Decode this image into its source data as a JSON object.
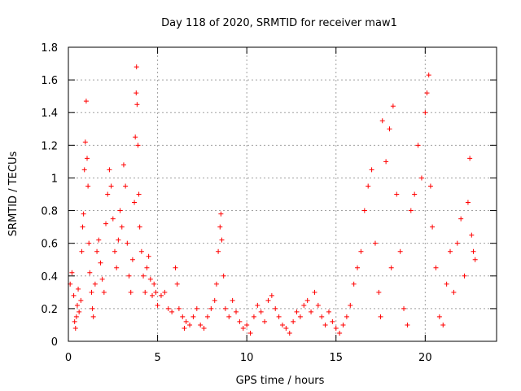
{
  "chart_data": {
    "type": "scatter",
    "title": "Day 118 of 2020, SRMTID for receiver maw1",
    "xlabel": "GPS time / hours",
    "ylabel": "SRMTID / TECUs",
    "xlim": [
      0,
      24
    ],
    "ylim": [
      0,
      1.8
    ],
    "x_ticks": [
      0,
      5,
      10,
      15,
      20
    ],
    "x_tick_labels": [
      "0",
      "5",
      "10",
      "15",
      "20"
    ],
    "y_ticks": [
      0,
      0.2,
      0.4,
      0.6,
      0.8,
      1,
      1.2,
      1.4,
      1.6,
      1.8
    ],
    "y_tick_labels": [
      "0",
      "0.2",
      "0.4",
      "0.6",
      "0.8",
      "1",
      "1.2",
      "1.4",
      "1.6",
      "1.8"
    ],
    "grid": true,
    "marker": "+",
    "color": "#ff0000",
    "series": [
      {
        "name": "maw1",
        "points": [
          [
            0.1,
            0.35
          ],
          [
            0.2,
            0.42
          ],
          [
            0.3,
            0.28
          ],
          [
            0.35,
            0.12
          ],
          [
            0.4,
            0.08
          ],
          [
            0.45,
            0.15
          ],
          [
            0.5,
            0.22
          ],
          [
            0.55,
            0.32
          ],
          [
            0.6,
            0.18
          ],
          [
            0.7,
            0.25
          ],
          [
            0.75,
            0.55
          ],
          [
            0.8,
            0.7
          ],
          [
            0.85,
            0.78
          ],
          [
            0.9,
            1.05
          ],
          [
            0.95,
            1.22
          ],
          [
            1.0,
            1.47
          ],
          [
            1.05,
            1.12
          ],
          [
            1.1,
            0.95
          ],
          [
            1.15,
            0.6
          ],
          [
            1.2,
            0.42
          ],
          [
            1.3,
            0.3
          ],
          [
            1.35,
            0.2
          ],
          [
            1.4,
            0.15
          ],
          [
            1.5,
            0.35
          ],
          [
            1.6,
            0.55
          ],
          [
            1.7,
            0.62
          ],
          [
            1.8,
            0.48
          ],
          [
            1.9,
            0.38
          ],
          [
            2.0,
            0.3
          ],
          [
            2.1,
            0.72
          ],
          [
            2.2,
            0.9
          ],
          [
            2.3,
            1.05
          ],
          [
            2.4,
            0.95
          ],
          [
            2.5,
            0.75
          ],
          [
            2.6,
            0.55
          ],
          [
            2.7,
            0.45
          ],
          [
            2.8,
            0.62
          ],
          [
            2.9,
            0.8
          ],
          [
            3.0,
            0.7
          ],
          [
            3.1,
            1.08
          ],
          [
            3.2,
            0.95
          ],
          [
            3.3,
            0.6
          ],
          [
            3.4,
            0.4
          ],
          [
            3.5,
            0.3
          ],
          [
            3.6,
            0.5
          ],
          [
            3.7,
            0.85
          ],
          [
            3.75,
            1.25
          ],
          [
            3.8,
            1.52
          ],
          [
            3.82,
            1.68
          ],
          [
            3.85,
            1.45
          ],
          [
            3.9,
            1.2
          ],
          [
            3.95,
            0.9
          ],
          [
            4.0,
            0.7
          ],
          [
            4.1,
            0.55
          ],
          [
            4.2,
            0.4
          ],
          [
            4.3,
            0.3
          ],
          [
            4.4,
            0.45
          ],
          [
            4.5,
            0.52
          ],
          [
            4.6,
            0.38
          ],
          [
            4.7,
            0.28
          ],
          [
            4.8,
            0.35
          ],
          [
            4.9,
            0.3
          ],
          [
            5.0,
            0.22
          ],
          [
            5.2,
            0.28
          ],
          [
            5.4,
            0.3
          ],
          [
            5.6,
            0.2
          ],
          [
            5.8,
            0.18
          ],
          [
            6.0,
            0.45
          ],
          [
            6.1,
            0.35
          ],
          [
            6.2,
            0.2
          ],
          [
            6.4,
            0.15
          ],
          [
            6.5,
            0.08
          ],
          [
            6.6,
            0.12
          ],
          [
            6.8,
            0.1
          ],
          [
            7.0,
            0.15
          ],
          [
            7.2,
            0.2
          ],
          [
            7.4,
            0.1
          ],
          [
            7.6,
            0.08
          ],
          [
            7.8,
            0.15
          ],
          [
            8.0,
            0.2
          ],
          [
            8.2,
            0.25
          ],
          [
            8.3,
            0.35
          ],
          [
            8.4,
            0.55
          ],
          [
            8.5,
            0.7
          ],
          [
            8.55,
            0.78
          ],
          [
            8.6,
            0.62
          ],
          [
            8.7,
            0.4
          ],
          [
            8.8,
            0.2
          ],
          [
            9.0,
            0.15
          ],
          [
            9.2,
            0.25
          ],
          [
            9.4,
            0.18
          ],
          [
            9.6,
            0.12
          ],
          [
            9.8,
            0.08
          ],
          [
            10.0,
            0.1
          ],
          [
            10.2,
            0.05
          ],
          [
            10.4,
            0.15
          ],
          [
            10.6,
            0.22
          ],
          [
            10.8,
            0.18
          ],
          [
            11.0,
            0.12
          ],
          [
            11.2,
            0.25
          ],
          [
            11.4,
            0.28
          ],
          [
            11.6,
            0.2
          ],
          [
            11.8,
            0.15
          ],
          [
            12.0,
            0.1
          ],
          [
            12.2,
            0.08
          ],
          [
            12.4,
            0.05
          ],
          [
            12.6,
            0.12
          ],
          [
            12.8,
            0.18
          ],
          [
            13.0,
            0.15
          ],
          [
            13.2,
            0.22
          ],
          [
            13.4,
            0.25
          ],
          [
            13.6,
            0.18
          ],
          [
            13.8,
            0.3
          ],
          [
            14.0,
            0.22
          ],
          [
            14.2,
            0.15
          ],
          [
            14.4,
            0.1
          ],
          [
            14.6,
            0.18
          ],
          [
            14.8,
            0.12
          ],
          [
            15.0,
            0.08
          ],
          [
            15.2,
            0.05
          ],
          [
            15.4,
            0.1
          ],
          [
            15.6,
            0.15
          ],
          [
            15.8,
            0.22
          ],
          [
            16.0,
            0.35
          ],
          [
            16.2,
            0.45
          ],
          [
            16.4,
            0.55
          ],
          [
            16.6,
            0.8
          ],
          [
            16.8,
            0.95
          ],
          [
            17.0,
            1.05
          ],
          [
            17.2,
            0.6
          ],
          [
            17.4,
            0.3
          ],
          [
            17.5,
            0.15
          ],
          [
            17.6,
            1.35
          ],
          [
            17.8,
            1.1
          ],
          [
            18.0,
            1.3
          ],
          [
            18.1,
            0.45
          ],
          [
            18.2,
            1.44
          ],
          [
            18.4,
            0.9
          ],
          [
            18.6,
            0.55
          ],
          [
            18.8,
            0.2
          ],
          [
            19.0,
            0.1
          ],
          [
            19.2,
            0.8
          ],
          [
            19.4,
            0.9
          ],
          [
            19.6,
            1.2
          ],
          [
            19.8,
            1.0
          ],
          [
            20.0,
            1.4
          ],
          [
            20.1,
            1.52
          ],
          [
            20.2,
            1.63
          ],
          [
            20.3,
            0.95
          ],
          [
            20.4,
            0.7
          ],
          [
            20.6,
            0.45
          ],
          [
            20.8,
            0.15
          ],
          [
            21.0,
            0.1
          ],
          [
            21.2,
            0.35
          ],
          [
            21.4,
            0.55
          ],
          [
            21.6,
            0.3
          ],
          [
            21.8,
            0.6
          ],
          [
            22.0,
            0.75
          ],
          [
            22.2,
            0.4
          ],
          [
            22.4,
            0.85
          ],
          [
            22.5,
            1.12
          ],
          [
            22.6,
            0.65
          ],
          [
            22.7,
            0.55
          ],
          [
            22.8,
            0.5
          ]
        ]
      }
    ]
  }
}
